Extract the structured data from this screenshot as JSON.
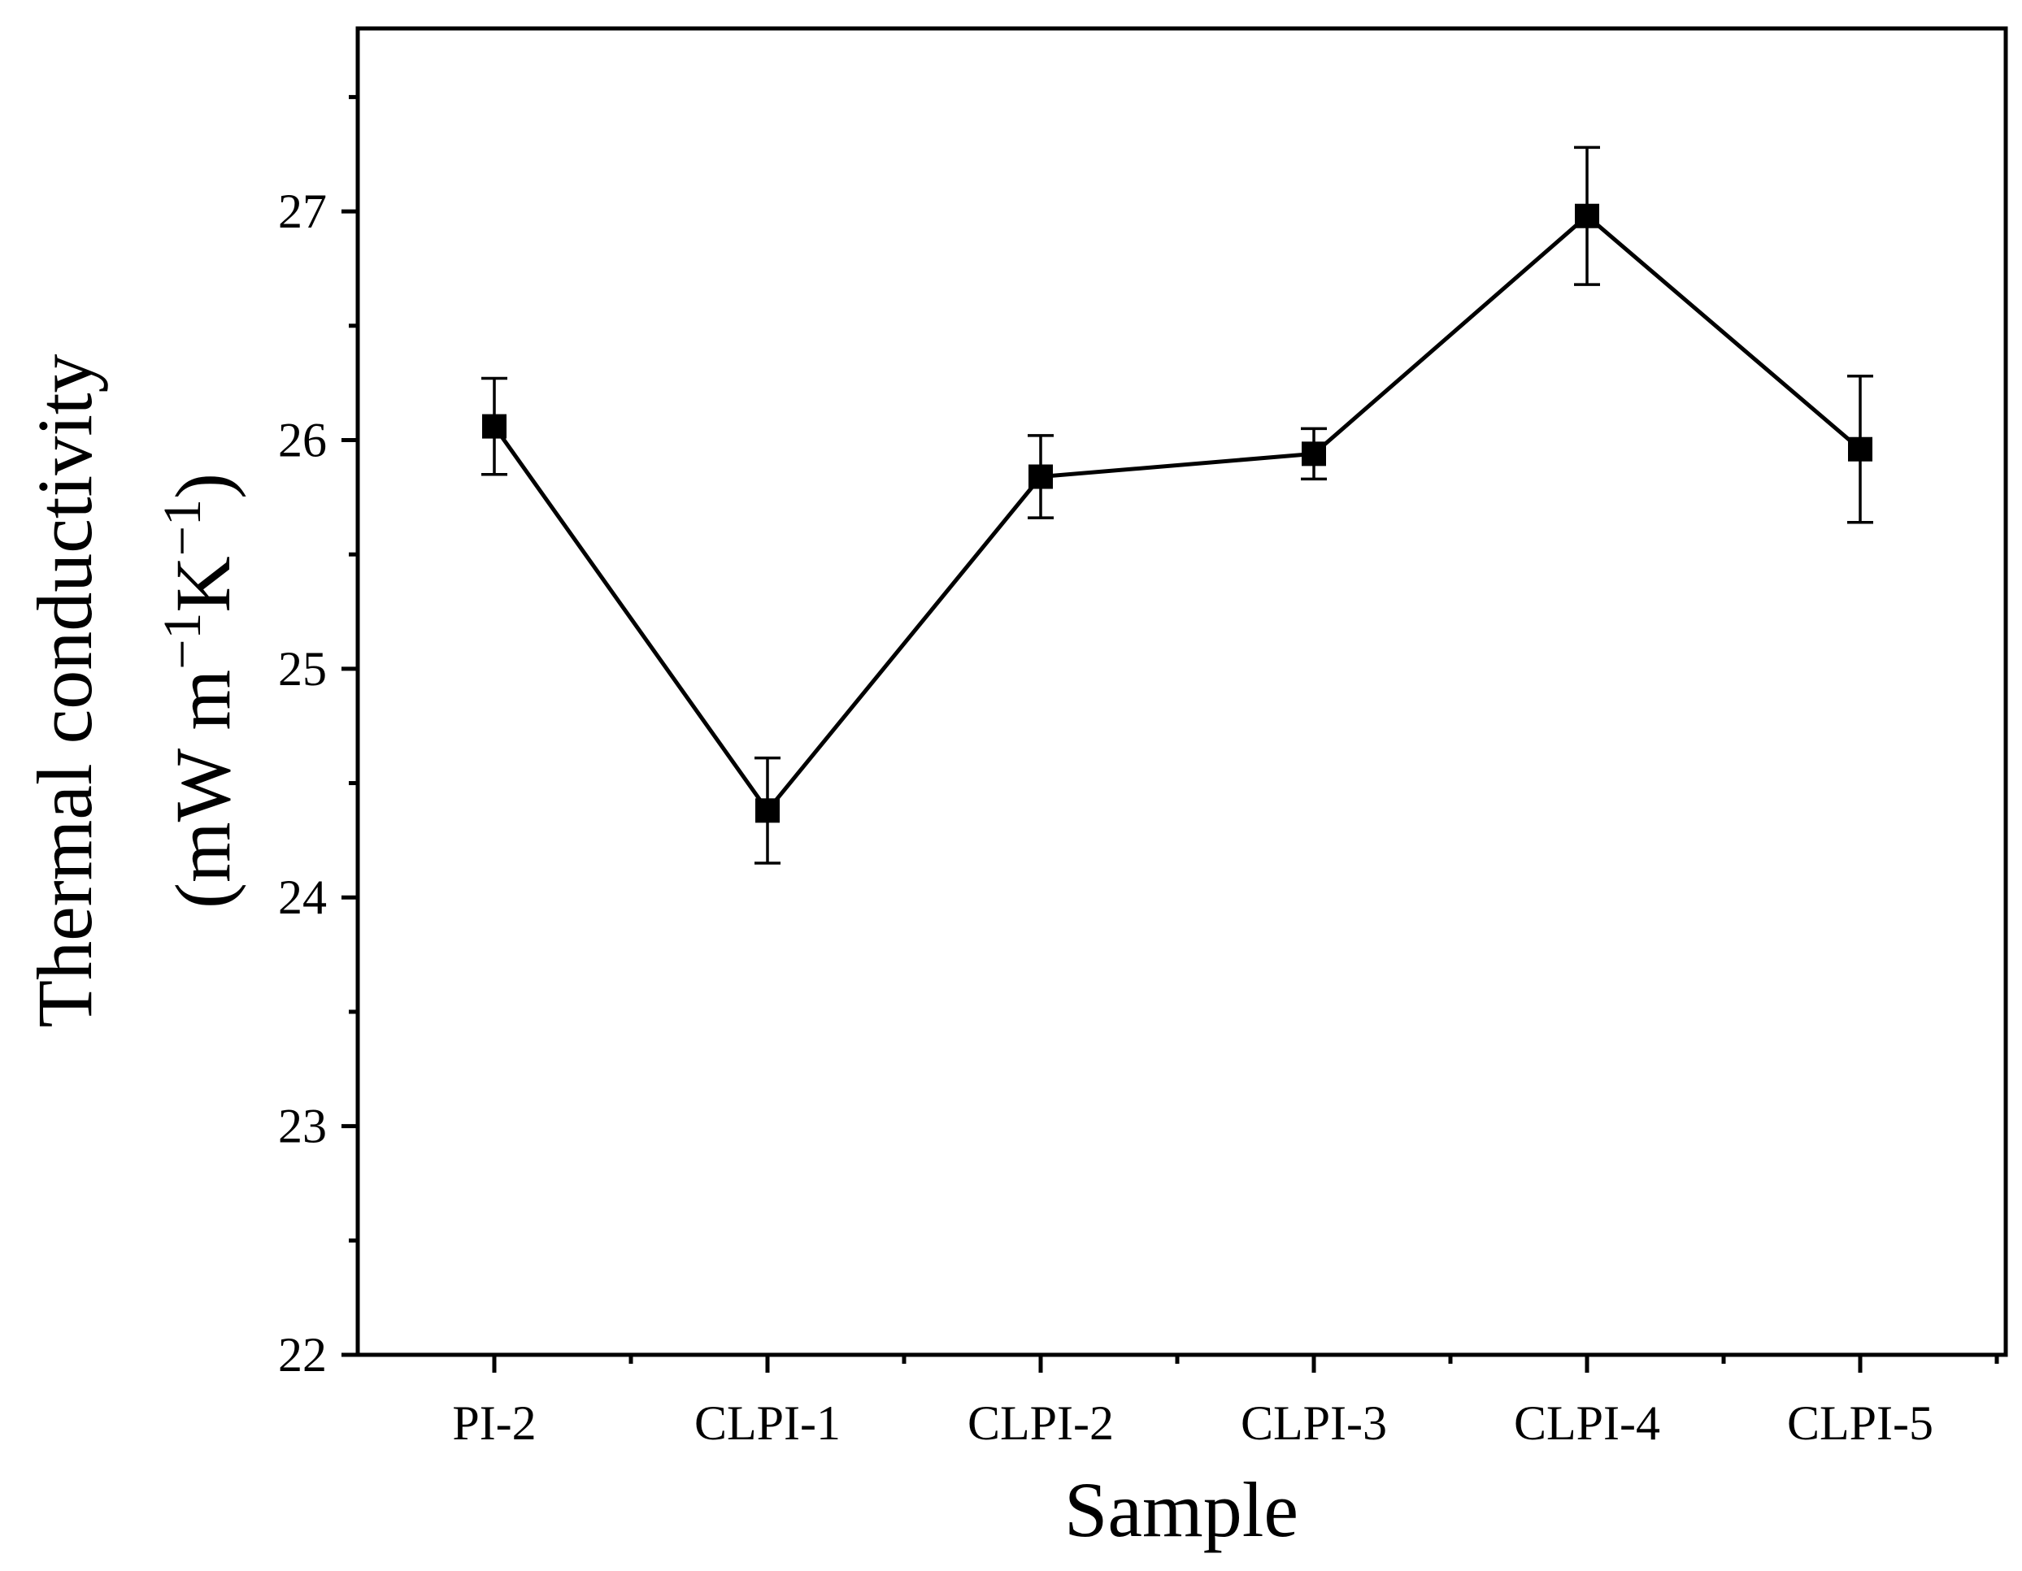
{
  "chart_data": {
    "type": "line",
    "title": "",
    "xlabel": "Sample",
    "ylabel_line1": "Thermal conductivity",
    "ylabel_line2": {
      "open": "(mW m",
      "exp1": "−1",
      "mid": "K",
      "exp2": "−1",
      "close": ")"
    },
    "categories": [
      "PI-2",
      "CLPI-1",
      "CLPI-2",
      "CLPI-3",
      "CLPI-4",
      "CLPI-5"
    ],
    "series": [
      {
        "name": "Thermal conductivity",
        "values": [
          26.06,
          24.38,
          25.84,
          25.94,
          26.98,
          25.96
        ],
        "error": [
          0.21,
          0.23,
          0.18,
          0.11,
          0.3,
          0.32
        ]
      }
    ],
    "ylim": [
      22,
      27.8
    ],
    "yticks": [
      22,
      23,
      24,
      25,
      26,
      27
    ],
    "ytick_labels": [
      "22",
      "23",
      "24",
      "25",
      "26",
      "27"
    ],
    "marker": "square",
    "color": "#000000",
    "grid": false,
    "legend": "none"
  }
}
